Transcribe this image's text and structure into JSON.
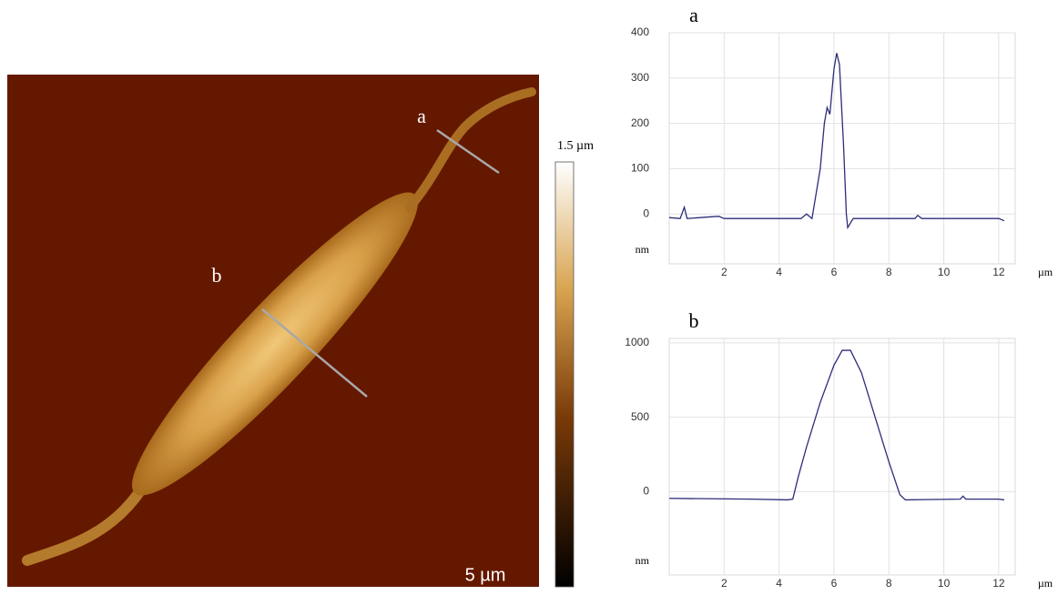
{
  "image": {
    "labels": [
      "a",
      "b"
    ],
    "colorbar_label": "1.5 µm",
    "scale_bar": "5 µm"
  },
  "chart_data": [
    {
      "type": "line",
      "title": "a",
      "x_label": "µm",
      "y_label": "nm",
      "xlim": [
        0,
        12.6
      ],
      "xticks": [
        2,
        4,
        6,
        8,
        10,
        12
      ],
      "ylim": [
        -110,
        400
      ],
      "yticks": [
        0,
        100,
        200,
        300,
        400
      ],
      "grid": true,
      "series": [
        {
          "color": "#2c2c7a",
          "x": [
            0,
            0.4,
            0.55,
            0.65,
            1.8,
            2,
            4.8,
            5.0,
            5.2,
            5.5,
            5.65,
            5.75,
            5.85,
            6.0,
            6.1,
            6.2,
            6.35,
            6.45,
            6.5,
            6.7,
            8.95,
            9.05,
            9.2,
            12,
            12.2
          ],
          "values": [
            -8,
            -10,
            15,
            -10,
            -5,
            -10,
            -10,
            0,
            -10,
            100,
            200,
            235,
            220,
            320,
            355,
            330,
            150,
            0,
            -30,
            -10,
            -10,
            -3,
            -10,
            -10,
            -15
          ]
        }
      ]
    },
    {
      "type": "line",
      "title": "b",
      "x_label": "µm",
      "y_label": "nm",
      "xlim": [
        0,
        12.6
      ],
      "xticks": [
        2,
        4,
        6,
        8,
        10,
        12
      ],
      "ylim": [
        -560,
        1030
      ],
      "yticks": [
        0,
        500,
        1000
      ],
      "grid": true,
      "series": [
        {
          "color": "#2c2c7a",
          "x": [
            0,
            3,
            4.3,
            4.5,
            4.7,
            5,
            5.5,
            6,
            6.3,
            6.6,
            7,
            7.5,
            8,
            8.4,
            8.6,
            10.6,
            10.7,
            10.8,
            12,
            12.2
          ],
          "values": [
            -45,
            -50,
            -55,
            -50,
            100,
            300,
            600,
            850,
            950,
            950,
            800,
            500,
            200,
            -20,
            -55,
            -50,
            -30,
            -50,
            -50,
            -55
          ]
        }
      ]
    }
  ]
}
